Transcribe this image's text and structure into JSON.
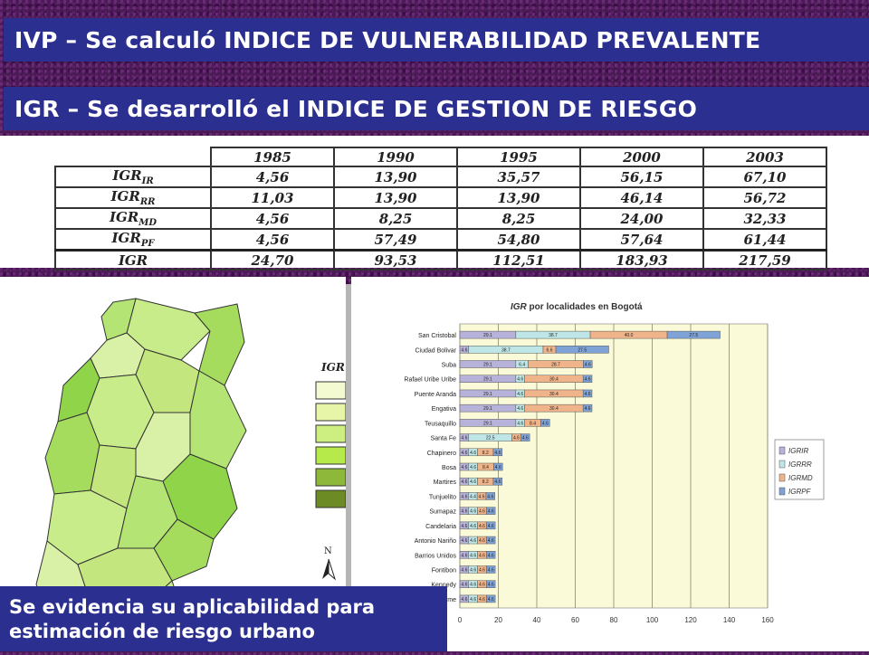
{
  "header": {
    "line1": "IVP – Se calculó INDICE DE VULNERABILIDAD PREVALENTE",
    "line2": "IGR – Se desarrolló el INDICE DE GESTION DE RIESGO"
  },
  "table": {
    "years": [
      "1985",
      "1990",
      "1995",
      "2000",
      "2003"
    ],
    "rows": [
      {
        "base": "IGR",
        "sub": "IR",
        "values": [
          "4,56",
          "13,90",
          "35,57",
          "56,15",
          "67,10"
        ]
      },
      {
        "base": "IGR",
        "sub": "RR",
        "values": [
          "11,03",
          "13,90",
          "13,90",
          "46,14",
          "56,72"
        ]
      },
      {
        "base": "IGR",
        "sub": "MD",
        "values": [
          "4,56",
          "8,25",
          "8,25",
          "24,00",
          "32,33"
        ]
      },
      {
        "base": "IGR",
        "sub": "PF",
        "values": [
          "4,56",
          "57,49",
          "54,80",
          "57,64",
          "61,44"
        ]
      },
      {
        "base": "IGR",
        "sub": "",
        "values": [
          "24,70",
          "93,53",
          "112,51",
          "183,93",
          "217,59"
        ]
      }
    ]
  },
  "map": {
    "legend_title": "IGR p",
    "legend_colors": [
      "#f3f9d0",
      "#e6f5a8",
      "#cdef82",
      "#b6ea4a",
      "#8db83a",
      "#6d8b24"
    ],
    "north_label": "N",
    "region_colors": [
      "#c9ec8a",
      "#b4e474",
      "#a6dc5e",
      "#d9f1a6",
      "#c3e67e",
      "#8fd449"
    ]
  },
  "chart_data": {
    "type": "bar",
    "orientation": "horizontal",
    "stacked": true,
    "title_main": "IGR",
    "title_rest": " por localidades en Bogotá",
    "categories": [
      "San Cristobal",
      "Ciudad Bolivar",
      "Suba",
      "Rafael Uribe Uribe",
      "Puente Aranda",
      "Engativa",
      "Teusaquillo",
      "Santa Fe",
      "Chapinero",
      "Bosa",
      "Martires",
      "Tunjuelito",
      "Sumapaz",
      "Candelaria",
      "Antonio Nariño",
      "Barrios Unidos",
      "Fontibon",
      "Kennedy",
      "Usme"
    ],
    "series": [
      {
        "name": "IGRIR",
        "color": "#b7b2d9",
        "values": [
          29.1,
          4.6,
          29.1,
          29.1,
          29.1,
          29.1,
          29.1,
          4.6,
          4.6,
          4.6,
          4.6,
          4.6,
          4.6,
          4.6,
          4.6,
          4.6,
          4.6,
          4.6,
          4.6
        ]
      },
      {
        "name": "IGRRR",
        "color": "#bfe6e6",
        "values": [
          38.7,
          38.7,
          6.4,
          4.6,
          4.6,
          4.6,
          4.6,
          22.5,
          4.6,
          4.6,
          4.6,
          4.4,
          4.6,
          4.6,
          4.6,
          4.6,
          4.6,
          4.6,
          4.6
        ]
      },
      {
        "name": "IGRMD",
        "color": "#f0b48a",
        "values": [
          40.0,
          6.6,
          28.7,
          30.4,
          30.4,
          30.4,
          8.4,
          4.6,
          8.2,
          8.4,
          8.2,
          4.6,
          4.6,
          4.6,
          4.6,
          4.6,
          4.6,
          4.6,
          4.6
        ]
      },
      {
        "name": "IGRPF",
        "color": "#7fa3d6",
        "values": [
          27.5,
          27.5,
          4.6,
          4.6,
          4.6,
          4.6,
          4.6,
          4.6,
          4.6,
          4.6,
          4.6,
          4.6,
          4.6,
          4.6,
          4.6,
          4.6,
          4.6,
          4.6,
          4.6
        ]
      }
    ],
    "segment_labels": [
      [
        "29.1",
        "38.7",
        "40.0",
        "27.5"
      ],
      [
        "4.6",
        "38.7",
        "6.6",
        "27.5"
      ],
      [
        "29.1",
        "6.4",
        "28.7",
        "4.6"
      ],
      [
        "29.1",
        "4.6",
        "30.4",
        "4.6"
      ],
      [
        "29.1",
        "4.6",
        "30.4",
        "4.6"
      ],
      [
        "29.1",
        "4.6",
        "30.4",
        "4.6"
      ],
      [
        "29.1",
        "4.6",
        "8.4",
        "4.6"
      ],
      [
        "4.6",
        "22.5",
        "4.6",
        "4.6"
      ],
      [
        "4.6",
        "4.6",
        "8.2",
        "4.6"
      ],
      [
        "4.6",
        "4.6",
        "8.4",
        "4.6"
      ],
      [
        "4.6",
        "4.6",
        "8.2",
        "4.6"
      ],
      [
        "4.6",
        "4.4",
        "4.6",
        "4.6"
      ],
      [
        "4.6",
        "4.6",
        "4.6",
        "4.6"
      ],
      [
        "4.6",
        "4.6",
        "4.6",
        "4.6"
      ],
      [
        "4.6",
        "4.6",
        "4.6",
        "4.6"
      ],
      [
        "4.6",
        "4.6",
        "4.6",
        "4.6"
      ],
      [
        "4.6",
        "4.6",
        "4.6",
        "4.6"
      ],
      [
        "4.6",
        "4.6",
        "4.6",
        "4.6"
      ],
      [
        "4.6",
        "4.6",
        "4.6",
        "4.6"
      ]
    ],
    "x_ticks": [
      "0",
      "20",
      "40",
      "60",
      "80",
      "100",
      "120",
      "140",
      "160"
    ],
    "xlim": [
      0,
      160
    ],
    "legend_position": "right",
    "grid": true
  },
  "caption": {
    "line1": "Se evidencia su aplicabilidad para",
    "line2": "estimación de riesgo urbano"
  }
}
